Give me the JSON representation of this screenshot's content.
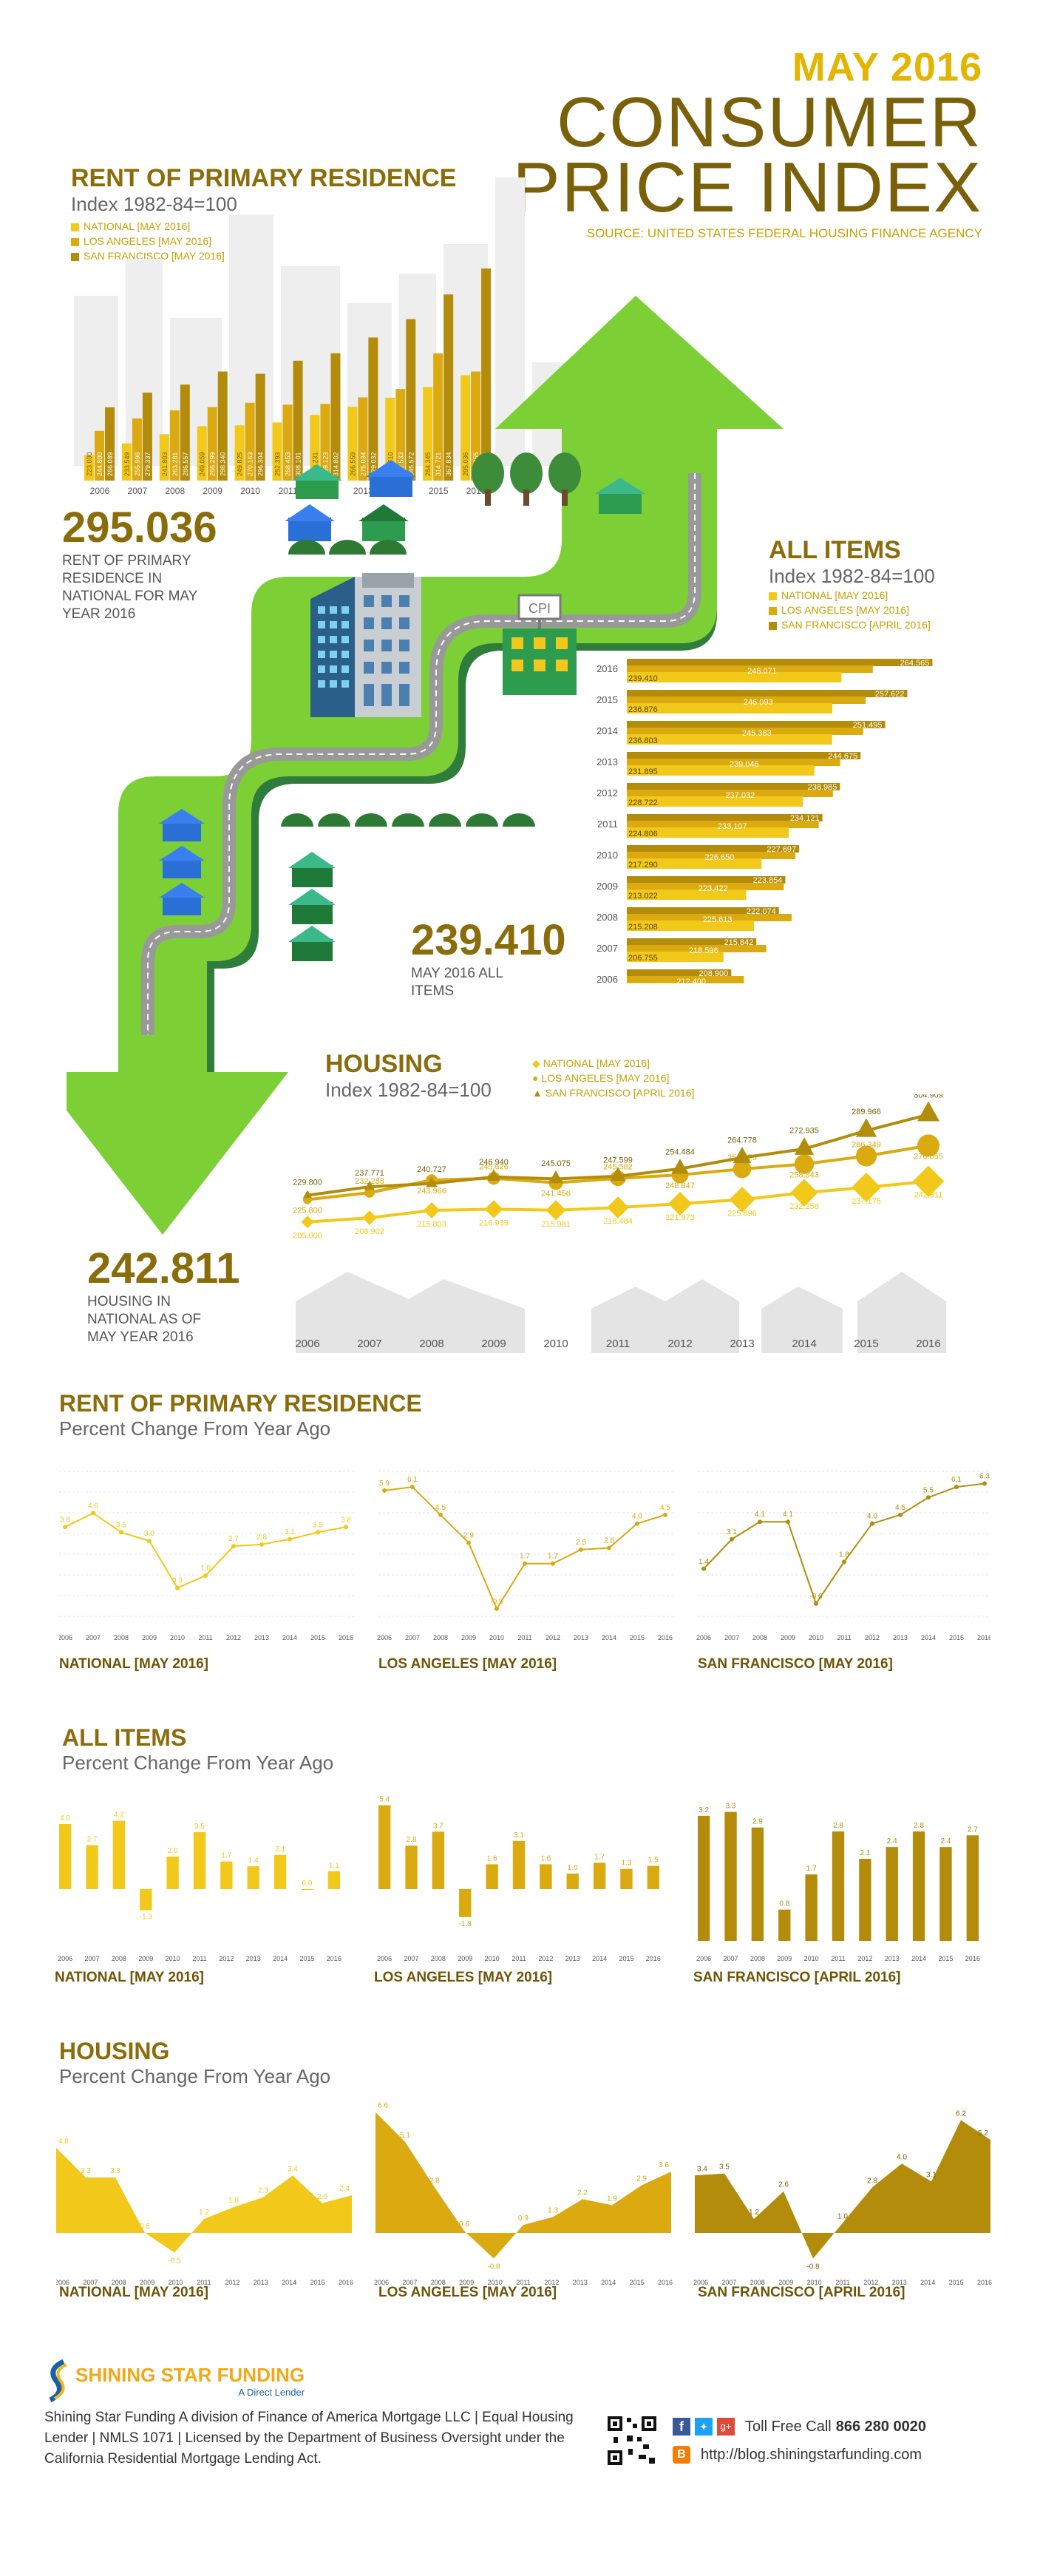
{
  "header": {
    "month": "MAY 2016",
    "line1": "CONSUMER",
    "line2": "PRICE INDEX",
    "source": "SOURCE: UNITED STATES FEDERAL HOUSING FINANCE AGENCY"
  },
  "colors": {
    "national": "#f2c81a",
    "la": "#dba910",
    "sf": "#b38c0b",
    "green": "#7ccf35",
    "darkgreen": "#2e9c4e"
  },
  "rent_index": {
    "title": "RENT OF PRIMARY RESIDENCE",
    "subtitle": "Index 1982-84=100",
    "legend": [
      "NATIONAL [MAY 2016]",
      "LOS ANGELES [MAY 2016]",
      "SAN FRANCISCO [MAY 2016]"
    ],
    "big": "295.036",
    "big_caption": "RENT OF PRIMARY RESIDENCE IN NATIONAL FOR MAY YEAR 2016"
  },
  "all_items_index": {
    "title": "ALL ITEMS",
    "subtitle": "Index 1982-84=100",
    "legend": [
      "NATIONAL [MAY 2016]",
      "LOS ANGELES [MAY 2016]",
      "SAN FRANCISCO [APRIL 2016]"
    ],
    "big": "239.410",
    "big_caption": "MAY 2016 ALL ITEMS"
  },
  "housing_index": {
    "title": "HOUSING",
    "subtitle": "Index 1982-84=100",
    "legend": [
      "NATIONAL [MAY 2016]",
      "LOS ANGELES [MAY 2016]",
      "SAN FRANCISCO [APRIL 2016]"
    ],
    "big": "242.811",
    "big_caption": "HOUSING IN NATIONAL AS OF MAY YEAR 2016"
  },
  "cpi_sign": "CPI",
  "rent_change": {
    "title": "RENT OF PRIMARY RESIDENCE",
    "subtitle": "Percent Change From Year Ago",
    "labels": [
      "NATIONAL [MAY 2016]",
      "LOS ANGELES [MAY 2016]",
      "SAN FRANCISCO [MAY 2016]"
    ]
  },
  "all_change": {
    "title": "ALL ITEMS",
    "subtitle": "Percent Change From Year Ago",
    "labels": [
      "NATIONAL [MAY 2016]",
      "LOS ANGELES [MAY 2016]",
      "SAN FRANCISCO [APRIL 2016]"
    ]
  },
  "housing_change": {
    "title": "HOUSING",
    "subtitle": "Percent Change From Year Ago",
    "labels": [
      "NATIONAL [MAY 2016]",
      "LOS ANGELES [MAY 2016]",
      "SAN FRANCISCO [APRIL 2016]"
    ]
  },
  "chart_data": [
    {
      "type": "bar",
      "title": "RENT OF PRIMARY RESIDENCE",
      "categories": [
        "2006",
        "2007",
        "2008",
        "2009",
        "2010",
        "2011",
        "2012",
        "2013",
        "2014",
        "2015",
        "2016"
      ],
      "series": [
        {
          "name": "NATIONAL [MAY 2016]",
          "values": [
            223.0,
            233.549,
            241.803,
            249.059,
            249.825,
            252.393,
            259.231,
            266.559,
            274.71,
            284.345,
            295.036
          ]
        },
        {
          "name": "LOS ANGELES [MAY 2016]",
          "values": [
            244.8,
            255.998,
            263.281,
            266.299,
            270.163,
            268.453,
            269.123,
            275.034,
            282.533,
            314.721,
            298.355
          ]
        },
        {
          "name": "SAN FRANCISCO [MAY 2016]",
          "values": [
            266.089,
            279.337,
            286.557,
            298.34,
            296.304,
            308.101,
            314.802,
            329.032,
            345.572,
            367.834,
            391.202
          ]
        }
      ]
    },
    {
      "type": "bar",
      "title": "ALL ITEMS",
      "categories": [
        "2016",
        "2015",
        "2014",
        "2013",
        "2012",
        "2011",
        "2010",
        "2009",
        "2008",
        "2007",
        "2006"
      ],
      "series": [
        {
          "name": "NATIONAL [MAY 2016]",
          "values": [
            239.41,
            236.876,
            236.803,
            231.895,
            228.722,
            224.806,
            217.29,
            213.022,
            215.208,
            206.755,
            201.3
          ]
        },
        {
          "name": "LOS ANGELES [MAY 2016]",
          "values": [
            248.071,
            246.093,
            245.383,
            239.046,
            237.032,
            233.107,
            226.65,
            223.422,
            225.613,
            218.596,
            212.4
          ]
        },
        {
          "name": "SAN FRANCISCO [APRIL 2016]",
          "values": [
            264.565,
            257.622,
            251.495,
            244.675,
            238.985,
            234.121,
            227.697,
            223.854,
            222.074,
            215.842,
            208.9
          ]
        }
      ]
    },
    {
      "type": "line",
      "title": "HOUSING",
      "x": [
        "2006",
        "2007",
        "2008",
        "2009",
        "2010",
        "2011",
        "2012",
        "2013",
        "2014",
        "2015",
        "2016"
      ],
      "series": [
        {
          "name": "NATIONAL [MAY 2016]",
          "values": [
            205.0,
            208.902,
            215.803,
            216.935,
            215.981,
            218.484,
            221.973,
            225.896,
            232.258,
            237.175,
            242.811
          ]
        },
        {
          "name": "LOS ANGELES [MAY 2016]",
          "values": [
            225.8,
            232.288,
            243.966,
            245.626,
            241.456,
            245.582,
            248.847,
            254.275,
            258.843,
            266.349,
            276.055
          ]
        },
        {
          "name": "SAN FRANCISCO [APRIL 2016]",
          "values": [
            229.8,
            237.771,
            240.727,
            246.94,
            245.075,
            247.599,
            254.484,
            264.778,
            272.935,
            289.966,
            304.909
          ]
        }
      ]
    },
    {
      "type": "line",
      "title": "RENT OF PRIMARY RESIDENCE — Percent Change From Year Ago",
      "x": [
        "2006",
        "2007",
        "2008",
        "2009",
        "2010",
        "2011",
        "2012",
        "2013",
        "2014",
        "2015",
        "2016"
      ],
      "series": [
        {
          "name": "NATIONAL [MAY 2016]",
          "values": [
            3.8,
            4.6,
            3.5,
            3.0,
            0.3,
            1.0,
            2.7,
            2.8,
            3.1,
            3.5,
            3.8
          ]
        },
        {
          "name": "LOS ANGELES [MAY 2016]",
          "values": [
            5.9,
            6.1,
            4.5,
            2.9,
            -0.9,
            1.7,
            1.7,
            2.5,
            2.6,
            4.0,
            4.5
          ]
        },
        {
          "name": "SAN FRANCISCO [MAY 2016]",
          "values": [
            1.4,
            3.1,
            4.1,
            4.1,
            -0.6,
            1.8,
            4.0,
            4.5,
            5.5,
            6.1,
            6.3
          ]
        }
      ]
    },
    {
      "type": "bar",
      "title": "ALL ITEMS — Percent Change From Year Ago",
      "categories": [
        "2006",
        "2007",
        "2008",
        "2009",
        "2010",
        "2011",
        "2012",
        "2013",
        "2014",
        "2015",
        "2016"
      ],
      "series": [
        {
          "name": "NATIONAL [MAY 2016]",
          "values": [
            4.0,
            2.7,
            4.2,
            -1.3,
            2.0,
            3.5,
            1.7,
            1.4,
            2.1,
            0.0,
            1.1
          ]
        },
        {
          "name": "LOS ANGELES [MAY 2016]",
          "values": [
            5.4,
            2.8,
            3.7,
            -1.8,
            1.6,
            3.1,
            1.6,
            1.0,
            1.7,
            1.3,
            1.5
          ]
        },
        {
          "name": "SAN FRANCISCO [APRIL 2016]",
          "values": [
            3.2,
            3.3,
            2.9,
            0.8,
            1.7,
            2.8,
            2.1,
            2.4,
            2.8,
            2.4,
            2.7
          ]
        }
      ]
    },
    {
      "type": "area",
      "title": "HOUSING — Percent Change From Year Ago",
      "x": [
        "2006",
        "2007",
        "2008",
        "2009",
        "2010",
        "2011",
        "2012",
        "2013",
        "2014",
        "2015",
        "2016"
      ],
      "series": [
        {
          "name": "NATIONAL [MAY 2016]",
          "values": [
            4.8,
            3.3,
            3.3,
            0.5,
            -0.5,
            1.2,
            1.8,
            2.3,
            3.4,
            2.0,
            2.4
          ]
        },
        {
          "name": "LOS ANGELES [MAY 2016]",
          "values": [
            6.6,
            5.1,
            2.8,
            0.6,
            -0.8,
            0.9,
            1.3,
            2.2,
            1.9,
            2.9,
            3.6
          ]
        },
        {
          "name": "SAN FRANCISCO [APRIL 2016]",
          "values": [
            3.4,
            3.5,
            1.2,
            2.6,
            -0.8,
            1.0,
            2.8,
            4.0,
            3.1,
            6.2,
            5.2
          ]
        }
      ]
    }
  ],
  "footer": {
    "logo_name": "SHINING STAR FUNDING",
    "logo_tag": "A Direct Lender",
    "text": "Shining Star Funding A division of Finance of America Mortgage LLC | Equal Housing Lender | NMLS 1071 | Licensed by the Department of Business Oversight under the California Residential Mortgage Lending Act.",
    "phone_label": "Toll Free Call",
    "phone": "866 280 0020",
    "blog": "http://blog.shiningstarfunding.com"
  }
}
